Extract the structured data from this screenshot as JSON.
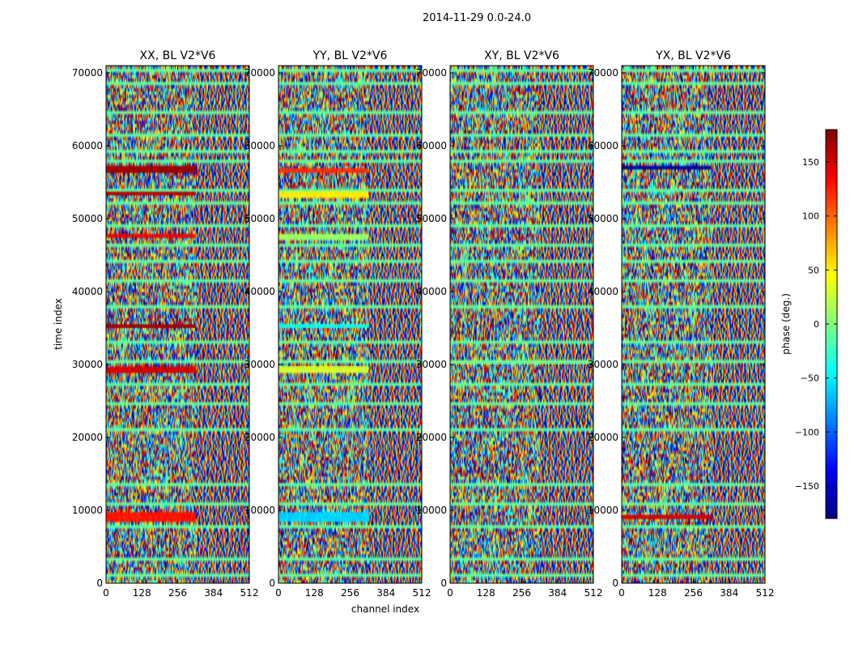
{
  "figure": {
    "suptitle": "2014-11-29 0.0-24.0",
    "xlabel": "channel index",
    "ylabel": "time index"
  },
  "chart_data": [
    {
      "type": "heatmap",
      "title": "XX, BL V2*V6",
      "xlim": [
        0,
        512
      ],
      "ylim": [
        0,
        71000
      ],
      "xticks": [
        0,
        128,
        256,
        384,
        512
      ],
      "yticks": [
        0,
        10000,
        20000,
        30000,
        40000,
        50000,
        60000,
        70000
      ],
      "value_range": [
        -180,
        180
      ],
      "bands": [
        {
          "t0": 8500,
          "t1": 9700,
          "c0": 0,
          "c1": 320,
          "value": 130
        },
        {
          "t0": 28900,
          "t1": 29600,
          "c0": 0,
          "c1": 320,
          "value": 150
        },
        {
          "t0": 35000,
          "t1": 35500,
          "c0": 0,
          "c1": 320,
          "value": 170
        },
        {
          "t0": 47300,
          "t1": 47800,
          "c0": 0,
          "c1": 320,
          "value": 140
        },
        {
          "t0": 53200,
          "t1": 53700,
          "c0": 0,
          "c1": 320,
          "value": 160
        },
        {
          "t0": 56300,
          "t1": 57200,
          "c0": 0,
          "c1": 320,
          "value": 170
        }
      ]
    },
    {
      "type": "heatmap",
      "title": "YY, BL V2*V6",
      "xlim": [
        0,
        512
      ],
      "ylim": [
        0,
        71000
      ],
      "xticks": [
        0,
        128,
        256,
        384,
        512
      ],
      "yticks": [
        0,
        10000,
        20000,
        30000,
        40000,
        50000,
        60000,
        70000
      ],
      "value_range": [
        -180,
        180
      ],
      "bands": [
        {
          "t0": 8500,
          "t1": 9700,
          "c0": 0,
          "c1": 320,
          "value": -60
        },
        {
          "t0": 28900,
          "t1": 29800,
          "c0": 0,
          "c1": 320,
          "value": 30
        },
        {
          "t0": 35000,
          "t1": 35600,
          "c0": 0,
          "c1": 320,
          "value": -40
        },
        {
          "t0": 47200,
          "t1": 47800,
          "c0": 0,
          "c1": 320,
          "value": 10
        },
        {
          "t0": 53000,
          "t1": 53800,
          "c0": 0,
          "c1": 320,
          "value": 50
        },
        {
          "t0": 56300,
          "t1": 57000,
          "c0": 0,
          "c1": 320,
          "value": 120
        }
      ]
    },
    {
      "type": "heatmap",
      "title": "XY, BL V2*V6",
      "xlim": [
        0,
        512
      ],
      "ylim": [
        0,
        71000
      ],
      "xticks": [
        0,
        128,
        256,
        384,
        512
      ],
      "yticks": [
        0,
        10000,
        20000,
        30000,
        40000,
        50000,
        60000,
        70000
      ],
      "value_range": [
        -180,
        180
      ],
      "bands": [
        {
          "t0": 30000,
          "t1": 30500,
          "c0": 0,
          "c1": 512,
          "value": -5
        }
      ]
    },
    {
      "type": "heatmap",
      "title": "YX, BL V2*V6",
      "xlim": [
        0,
        512
      ],
      "ylim": [
        0,
        71000
      ],
      "xticks": [
        0,
        128,
        256,
        384,
        512
      ],
      "yticks": [
        0,
        10000,
        20000,
        30000,
        40000,
        50000,
        60000,
        70000
      ],
      "value_range": [
        -180,
        180
      ],
      "bands": [
        {
          "t0": 8800,
          "t1": 9400,
          "c0": 0,
          "c1": 320,
          "value": 150
        },
        {
          "t0": 56800,
          "t1": 57200,
          "c0": 0,
          "c1": 320,
          "value": -170
        }
      ]
    }
  ],
  "colorbar": {
    "label": "phase (deg.)",
    "range": [
      -180,
      180
    ],
    "ticks": [
      150,
      100,
      50,
      0,
      -50,
      -100,
      -150
    ],
    "tick_labels": [
      "150",
      "100",
      "50",
      "0",
      "−50",
      "−100",
      "−150"
    ],
    "colormap": "jet"
  },
  "flag_rows": [
    1200,
    3500,
    7700,
    11000,
    13500,
    21000,
    24500,
    27500,
    30200,
    33000,
    38000,
    41500,
    44000,
    46200,
    49000,
    52000,
    54000,
    58000,
    59300,
    61500,
    64500,
    68500,
    70200
  ]
}
